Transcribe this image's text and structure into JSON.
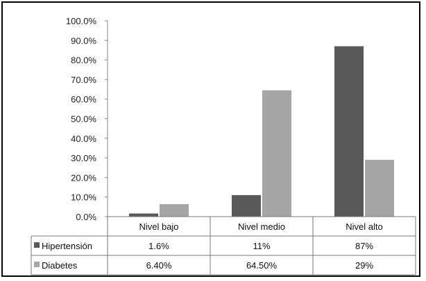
{
  "chart_data": {
    "type": "bar",
    "categories": [
      "Nivel bajo",
      "Nivel medio",
      "Nivel alto"
    ],
    "series": [
      {
        "name": "Hipertensión",
        "values": [
          1.6,
          11,
          87
        ],
        "labels": [
          "1.6%",
          "11%",
          "87%"
        ],
        "color": "#595959"
      },
      {
        "name": "Diabetes",
        "values": [
          6.4,
          64.5,
          29
        ],
        "labels": [
          "6.40%",
          "64.50%",
          "29%"
        ],
        "color": "#a6a6a6"
      }
    ],
    "ylim": [
      0,
      100
    ],
    "yticks": [
      "0.0%",
      "10.0%",
      "20.0%",
      "30.0%",
      "40.0%",
      "50.0%",
      "60.0%",
      "70.0%",
      "80.0%",
      "90.0%",
      "100.0%"
    ],
    "grid": false,
    "legend": "data-table"
  }
}
